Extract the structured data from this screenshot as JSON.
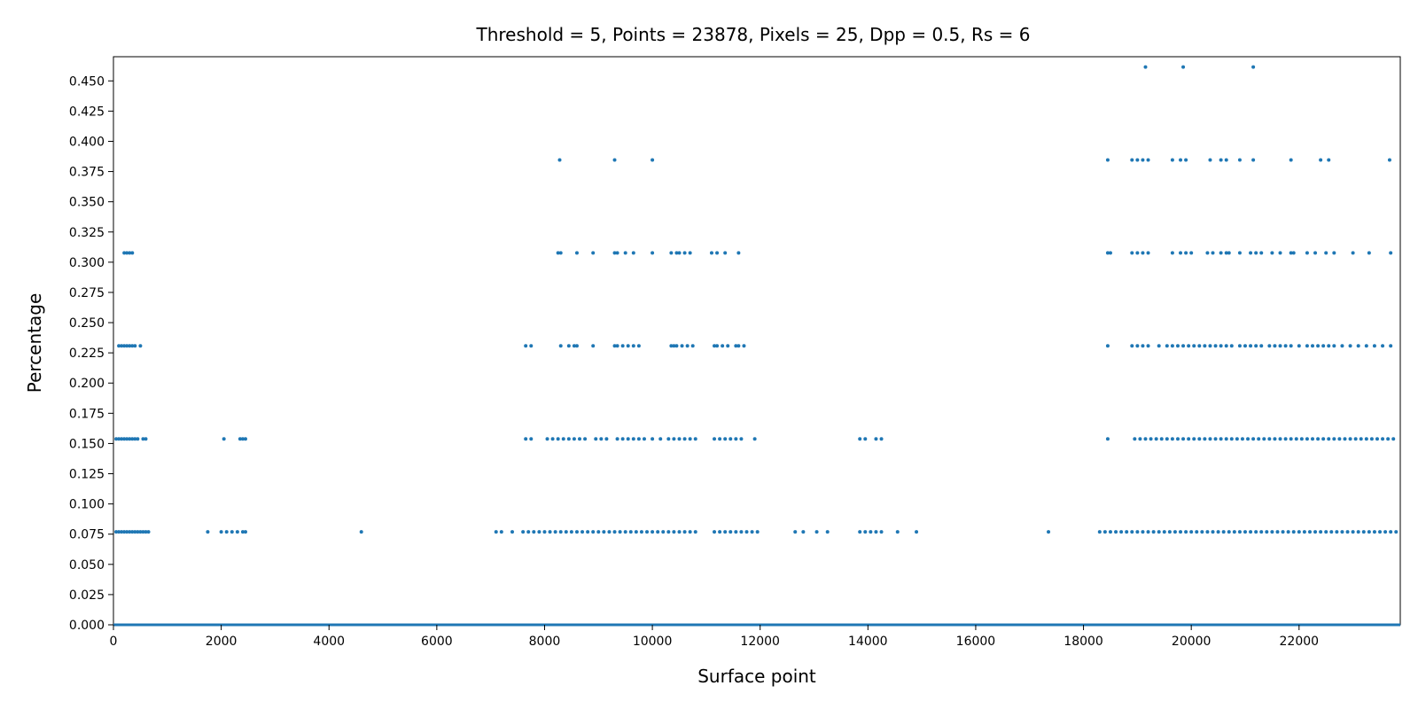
{
  "chart_data": {
    "type": "scatter",
    "title": "Threshold = 5, Points = 23878, Pixels = 25, Dpp = 0.5, Rs = 6",
    "xlabel": "Surface point",
    "ylabel": "Percentage",
    "xlim": [
      0,
      23878
    ],
    "ylim": [
      0.0,
      0.47
    ],
    "x_ticks": [
      "0",
      "2000",
      "4000",
      "6000",
      "8000",
      "10000",
      "12000",
      "14000",
      "16000",
      "18000",
      "20000",
      "22000"
    ],
    "y_ticks": [
      "0.000",
      "0.025",
      "0.050",
      "0.075",
      "0.100",
      "0.125",
      "0.150",
      "0.175",
      "0.200",
      "0.225",
      "0.250",
      "0.275",
      "0.300",
      "0.325",
      "0.350",
      "0.375",
      "0.400",
      "0.425",
      "0.450"
    ],
    "grid": false,
    "legend": "none",
    "color": "#1f77b4",
    "levels": [
      0.0,
      0.0769,
      0.1538,
      0.2308,
      0.3077,
      0.3846,
      0.4615
    ],
    "series": [
      {
        "level": 0.4615,
        "points": [
          19150,
          19850,
          21150
        ]
      },
      {
        "level": 0.3846,
        "points": [
          8280,
          9300,
          10000,
          18450,
          18900,
          19000,
          19100,
          19200,
          19650,
          19800,
          19900,
          20350,
          20550,
          20650,
          20900,
          21150,
          21850,
          22400,
          22550,
          23680
        ]
      },
      {
        "level": 0.3077,
        "points": [
          200,
          250,
          300,
          350,
          8250,
          8300,
          8600,
          8900,
          9300,
          9350,
          9500,
          9650,
          10000,
          10350,
          10450,
          10500,
          10600,
          10700,
          11100,
          11200,
          11350,
          11600,
          18450,
          18500,
          18900,
          19000,
          19100,
          19200,
          19650,
          19800,
          19900,
          20000,
          20300,
          20400,
          20550,
          20650,
          20700,
          20900,
          21100,
          21200,
          21300,
          21500,
          21650,
          21850,
          21900,
          22150,
          22300,
          22500,
          22650,
          23000,
          23300,
          23700
        ]
      },
      {
        "level": 0.2308,
        "points": [
          100,
          150,
          200,
          250,
          300,
          350,
          400,
          500,
          7650,
          7750,
          8300,
          8450,
          8550,
          8600,
          8900,
          9300,
          9350,
          9450,
          9550,
          9650,
          9750,
          10350,
          10400,
          10450,
          10550,
          10650,
          10750,
          11150,
          11200,
          11300,
          11400,
          11550,
          11600,
          11700,
          18450,
          18900,
          19000,
          19100,
          19200,
          19400,
          19550,
          19650,
          19750,
          19850,
          19950,
          20050,
          20150,
          20250,
          20350,
          20450,
          20550,
          20650,
          20750,
          20900,
          21000,
          21100,
          21200,
          21300,
          21450,
          21550,
          21650,
          21750,
          21850,
          22000,
          22150,
          22250,
          22350,
          22450,
          22550,
          22650,
          22800,
          22950,
          23100,
          23250,
          23400,
          23550,
          23700
        ]
      },
      {
        "level": 0.1538,
        "points": [
          50,
          100,
          150,
          200,
          250,
          300,
          350,
          400,
          450,
          550,
          600,
          2050,
          2350,
          2400,
          2450,
          7650,
          7750,
          8050,
          8150,
          8250,
          8350,
          8450,
          8550,
          8650,
          8750,
          8950,
          9050,
          9150,
          9350,
          9450,
          9550,
          9650,
          9750,
          9850,
          10000,
          10150,
          10300,
          10400,
          10500,
          10600,
          10700,
          10800,
          11150,
          11250,
          11350,
          11450,
          11550,
          11650,
          11900,
          13850,
          13950,
          14150,
          14250,
          18450,
          18950,
          19050,
          19150,
          19250,
          19350,
          19450,
          19550,
          19650,
          19750,
          19850,
          19950,
          20050,
          20150,
          20250,
          20350,
          20450,
          20550,
          20650,
          20750,
          20850,
          20950,
          21050,
          21150,
          21250,
          21350,
          21450,
          21550,
          21650,
          21750,
          21850,
          21950,
          22050,
          22150,
          22250,
          22350,
          22450,
          22550,
          22650,
          22750,
          22850,
          22950,
          23050,
          23150,
          23250,
          23350,
          23450,
          23550,
          23650,
          23750
        ]
      },
      {
        "level": 0.0769,
        "points": [
          50,
          100,
          150,
          200,
          250,
          300,
          350,
          400,
          450,
          500,
          550,
          600,
          650,
          1750,
          2000,
          2100,
          2200,
          2300,
          2400,
          2450,
          4600,
          7100,
          7200,
          7400,
          7600,
          7700,
          7800,
          7900,
          8000,
          8100,
          8200,
          8300,
          8400,
          8500,
          8600,
          8700,
          8800,
          8900,
          9000,
          9100,
          9200,
          9300,
          9400,
          9500,
          9600,
          9700,
          9800,
          9900,
          10000,
          10100,
          10200,
          10300,
          10400,
          10500,
          10600,
          10700,
          10800,
          11150,
          11250,
          11350,
          11450,
          11550,
          11650,
          11750,
          11850,
          11950,
          12650,
          12800,
          13050,
          13250,
          13850,
          13950,
          14050,
          14150,
          14250,
          14550,
          14900,
          17350,
          18300,
          18400,
          18500,
          18600,
          18700,
          18800,
          18900,
          19000,
          19100,
          19200,
          19300,
          19400,
          19500,
          19600,
          19700,
          19800,
          19900,
          20000,
          20100,
          20200,
          20300,
          20400,
          20500,
          20600,
          20700,
          20800,
          20900,
          21000,
          21100,
          21200,
          21300,
          21400,
          21500,
          21600,
          21700,
          21800,
          21900,
          22000,
          22100,
          22200,
          22300,
          22400,
          22500,
          22600,
          22700,
          22800,
          22900,
          23000,
          23100,
          23200,
          23300,
          23400,
          23500,
          23600,
          23700,
          23800
        ]
      },
      {
        "level": 0.0,
        "points": [
          0,
          23878
        ]
      }
    ]
  }
}
